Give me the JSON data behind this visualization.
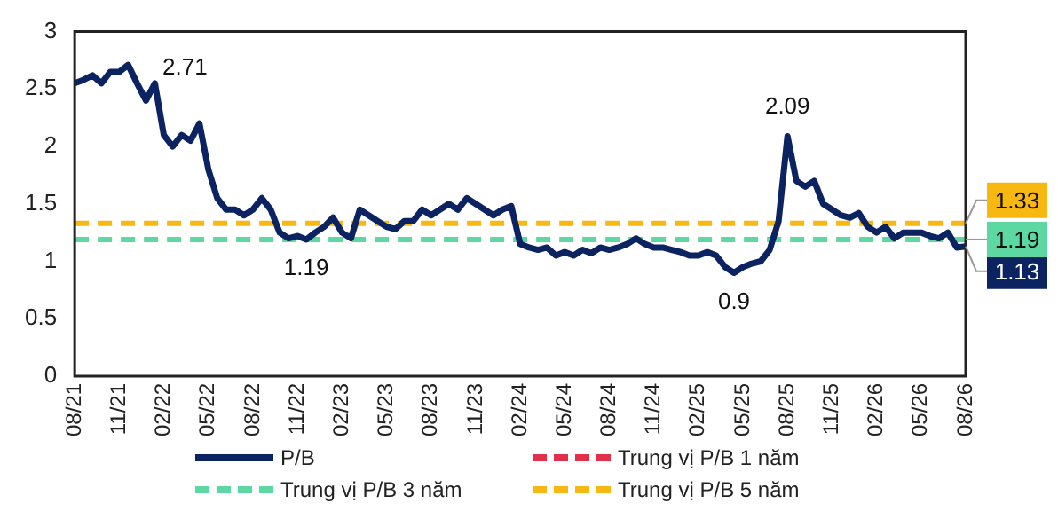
{
  "chart_data": {
    "type": "line",
    "categories": [
      "08/21",
      null,
      null,
      null,
      null,
      "11/21",
      null,
      null,
      null,
      null,
      "02/22",
      null,
      null,
      null,
      null,
      "05/22",
      null,
      null,
      null,
      null,
      "08/22",
      null,
      null,
      null,
      null,
      "11/22",
      null,
      null,
      null,
      null,
      "02/23",
      null,
      null,
      null,
      null,
      "05/23",
      null,
      null,
      null,
      null,
      "08/23",
      null,
      null,
      null,
      null,
      "11/23",
      null,
      null,
      null,
      null,
      "02/24",
      null,
      null,
      null,
      null,
      "05/24",
      null,
      null,
      null,
      null,
      "08/24",
      null,
      null,
      null,
      null,
      "11/24",
      null,
      null,
      null,
      null,
      "02/25",
      null,
      null,
      null,
      null,
      "05/25",
      null,
      null,
      null,
      null,
      "08/25",
      null,
      null,
      null,
      null,
      "11/25",
      null,
      null,
      null,
      null,
      "02/26",
      null,
      null,
      null,
      null,
      "05/26",
      null,
      null,
      null,
      null,
      "08/26"
    ],
    "ylim": [
      0,
      3
    ],
    "yticks": [
      0,
      0.5,
      1,
      1.5,
      2,
      2.5,
      3
    ],
    "grid": false,
    "legend": "bottom",
    "marker": "none",
    "series": [
      {
        "name": "P/B",
        "color": "#0b2461",
        "line_style": "solid",
        "values": [
          2.55,
          2.58,
          2.62,
          2.55,
          2.65,
          2.65,
          2.71,
          2.55,
          2.4,
          2.55,
          2.1,
          2.0,
          2.1,
          2.05,
          2.2,
          1.8,
          1.55,
          1.45,
          1.45,
          1.4,
          1.45,
          1.55,
          1.45,
          1.25,
          1.2,
          1.22,
          1.19,
          1.25,
          1.3,
          1.38,
          1.25,
          1.2,
          1.45,
          1.4,
          1.35,
          1.3,
          1.28,
          1.35,
          1.35,
          1.45,
          1.4,
          1.45,
          1.5,
          1.45,
          1.55,
          1.5,
          1.45,
          1.4,
          1.45,
          1.48,
          1.15,
          1.12,
          1.1,
          1.12,
          1.05,
          1.08,
          1.05,
          1.1,
          1.07,
          1.12,
          1.1,
          1.12,
          1.15,
          1.2,
          1.15,
          1.12,
          1.12,
          1.1,
          1.08,
          1.05,
          1.05,
          1.08,
          1.05,
          0.95,
          0.9,
          0.95,
          0.98,
          1.0,
          1.1,
          1.35,
          2.09,
          1.7,
          1.65,
          1.7,
          1.5,
          1.45,
          1.4,
          1.38,
          1.42,
          1.3,
          1.25,
          1.3,
          1.2,
          1.25,
          1.25,
          1.25,
          1.22,
          1.2,
          1.25,
          1.12,
          1.13
        ],
        "value_labels": [
          null,
          null,
          null,
          null,
          null,
          null,
          "2.71",
          null,
          null,
          null,
          null,
          null,
          null,
          null,
          null,
          null,
          null,
          null,
          null,
          null,
          null,
          null,
          null,
          null,
          null,
          null,
          "1.19",
          null,
          null,
          null,
          null,
          null,
          null,
          null,
          null,
          null,
          null,
          null,
          null,
          null,
          null,
          null,
          null,
          null,
          null,
          null,
          null,
          null,
          null,
          null,
          null,
          null,
          null,
          null,
          null,
          null,
          null,
          null,
          null,
          null,
          null,
          null,
          null,
          null,
          null,
          null,
          null,
          null,
          null,
          null,
          null,
          null,
          null,
          null,
          "0.9",
          null,
          null,
          null,
          null,
          null,
          "2.09",
          null,
          null,
          null,
          null,
          null,
          null,
          null,
          null,
          null,
          null,
          null,
          null,
          null,
          null,
          null,
          null,
          null,
          null,
          null,
          "1.13"
        ]
      },
      {
        "name": "Trung vị P/B 1 năm",
        "color": "#e0304a",
        "line_style": "dashed",
        "values": [
          null,
          null,
          null,
          null,
          null,
          null,
          null,
          null,
          null,
          null,
          null,
          null,
          null,
          null,
          null,
          null,
          null,
          null,
          null,
          null,
          null,
          null,
          null,
          null,
          null,
          null,
          null,
          null,
          null,
          null,
          null,
          null,
          null,
          null,
          null,
          null,
          null,
          null,
          null,
          null,
          null,
          null,
          null,
          null,
          null,
          null,
          null,
          null,
          null,
          null,
          null,
          null,
          null,
          null,
          null,
          null,
          null,
          null,
          null,
          null,
          null,
          null,
          null,
          null,
          null,
          null,
          null,
          null,
          null,
          null,
          null,
          null,
          null,
          null,
          null,
          null,
          null,
          null,
          null,
          null,
          null,
          null,
          null,
          null,
          null,
          null,
          null,
          null,
          null,
          null,
          null,
          null,
          null,
          null,
          null,
          null,
          null,
          null,
          null,
          null,
          null
        ]
      },
      {
        "name": "Trung vị P/B 3 năm",
        "color": "#5dd8a2",
        "line_style": "dashed",
        "values": [
          1.19,
          1.19,
          1.19,
          1.19,
          1.19,
          1.19,
          1.19,
          1.19,
          1.19,
          1.19,
          1.19,
          1.19,
          1.19,
          1.19,
          1.19,
          1.19,
          1.19,
          1.19,
          1.19,
          1.19,
          1.19,
          1.19,
          1.19,
          1.19,
          1.19,
          1.19,
          1.19,
          1.19,
          1.19,
          1.19,
          1.19,
          1.19,
          1.19,
          1.19,
          1.19,
          1.19,
          1.19,
          1.19,
          1.19,
          1.19,
          1.19,
          1.19,
          1.19,
          1.19,
          1.19,
          1.19,
          1.19,
          1.19,
          1.19,
          1.19,
          1.19,
          1.19,
          1.19,
          1.19,
          1.19,
          1.19,
          1.19,
          1.19,
          1.19,
          1.19,
          1.19,
          1.19,
          1.19,
          1.19,
          1.19,
          1.19,
          1.19,
          1.19,
          1.19,
          1.19,
          1.19,
          1.19,
          1.19,
          1.19,
          1.19,
          1.19,
          1.19,
          1.19,
          1.19,
          1.19,
          1.19,
          1.19,
          1.19,
          1.19,
          1.19,
          1.19,
          1.19,
          1.19,
          1.19,
          1.19,
          1.19,
          1.19,
          1.19,
          1.19,
          1.19,
          1.19,
          1.19,
          1.19,
          1.19,
          1.19,
          1.19
        ],
        "value_labels": [
          null,
          null,
          null,
          null,
          null,
          null,
          null,
          null,
          null,
          null,
          null,
          null,
          null,
          null,
          null,
          null,
          null,
          null,
          null,
          null,
          null,
          null,
          null,
          null,
          null,
          null,
          null,
          null,
          null,
          null,
          null,
          null,
          null,
          null,
          null,
          null,
          null,
          null,
          null,
          null,
          null,
          null,
          null,
          null,
          null,
          null,
          null,
          null,
          null,
          null,
          null,
          null,
          null,
          null,
          null,
          null,
          null,
          null,
          null,
          null,
          null,
          null,
          null,
          null,
          null,
          null,
          null,
          null,
          null,
          null,
          null,
          null,
          null,
          null,
          null,
          null,
          null,
          null,
          null,
          null,
          null,
          null,
          null,
          null,
          null,
          null,
          null,
          null,
          null,
          null,
          null,
          null,
          null,
          null,
          null,
          null,
          null,
          null,
          null,
          null,
          "1.19"
        ]
      },
      {
        "name": "Trung vị P/B 5 năm",
        "color": "#f6b811",
        "line_style": "dashed",
        "values": [
          1.33,
          1.33,
          1.33,
          1.33,
          1.33,
          1.33,
          1.33,
          1.33,
          1.33,
          1.33,
          1.33,
          1.33,
          1.33,
          1.33,
          1.33,
          1.33,
          1.33,
          1.33,
          1.33,
          1.33,
          1.33,
          1.33,
          1.33,
          1.33,
          1.33,
          1.33,
          1.33,
          1.33,
          1.33,
          1.33,
          1.33,
          1.33,
          1.33,
          1.33,
          1.33,
          1.33,
          1.33,
          1.33,
          1.33,
          1.33,
          1.33,
          1.33,
          1.33,
          1.33,
          1.33,
          1.33,
          1.33,
          1.33,
          1.33,
          1.33,
          1.33,
          1.33,
          1.33,
          1.33,
          1.33,
          1.33,
          1.33,
          1.33,
          1.33,
          1.33,
          1.33,
          1.33,
          1.33,
          1.33,
          1.33,
          1.33,
          1.33,
          1.33,
          1.33,
          1.33,
          1.33,
          1.33,
          1.33,
          1.33,
          1.33,
          1.33,
          1.33,
          1.33,
          1.33,
          1.33,
          1.33,
          1.33,
          1.33,
          1.33,
          1.33,
          1.33,
          1.33,
          1.33,
          1.33,
          1.33,
          1.33,
          1.33,
          1.33,
          1.33,
          1.33,
          1.33,
          1.33,
          1.33,
          1.33,
          1.33,
          1.33
        ],
        "value_labels": [
          null,
          null,
          null,
          null,
          null,
          null,
          null,
          null,
          null,
          null,
          null,
          null,
          null,
          null,
          null,
          null,
          null,
          null,
          null,
          null,
          null,
          null,
          null,
          null,
          null,
          null,
          null,
          null,
          null,
          null,
          null,
          null,
          null,
          null,
          null,
          null,
          null,
          null,
          null,
          null,
          null,
          null,
          null,
          null,
          null,
          null,
          null,
          null,
          null,
          null,
          null,
          null,
          null,
          null,
          null,
          null,
          null,
          null,
          null,
          null,
          null,
          null,
          null,
          null,
          null,
          null,
          null,
          null,
          null,
          null,
          null,
          null,
          null,
          null,
          null,
          null,
          null,
          null,
          null,
          null,
          null,
          null,
          null,
          null,
          null,
          null,
          null,
          null,
          null,
          null,
          null,
          null,
          null,
          null,
          null,
          null,
          null,
          null,
          null,
          null,
          "1.33"
        ]
      }
    ]
  }
}
